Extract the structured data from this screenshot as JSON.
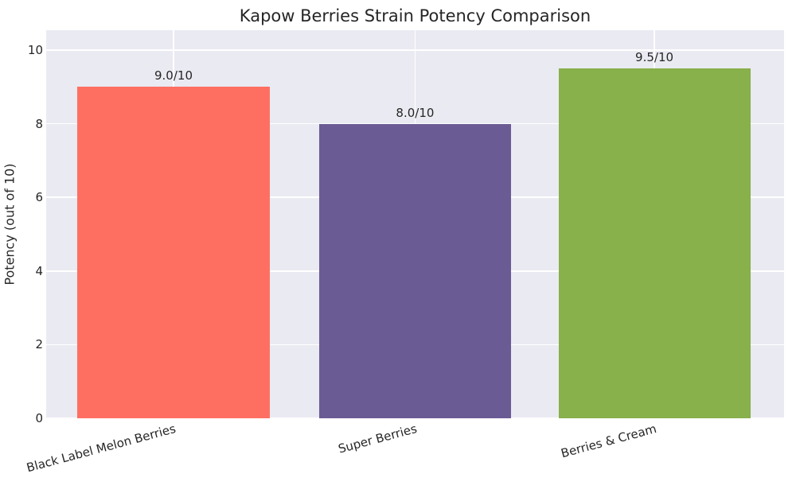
{
  "chart_data": {
    "type": "bar",
    "title": "Kapow Berries Strain Potency Comparison",
    "xlabel": "",
    "ylabel": "Potency (out of 10)",
    "categories": [
      "Black Label Melon Berries",
      "Super Berries",
      "Berries & Cream"
    ],
    "values": [
      9.0,
      8.0,
      9.5
    ],
    "bar_labels": [
      "9.0/10",
      "8.0/10",
      "9.5/10"
    ],
    "bar_colors": [
      "#FF6F61",
      "#6B5B95",
      "#88B04B"
    ],
    "yticks": [
      0,
      2,
      4,
      6,
      8,
      10
    ],
    "ylim": [
      0,
      10.54
    ],
    "grid": true,
    "legend": "none",
    "plot_bg_color": "#EAEAF2",
    "grid_color": "#FFFFFF",
    "text_color": "#262626",
    "xtick_rotation_deg": 15
  }
}
